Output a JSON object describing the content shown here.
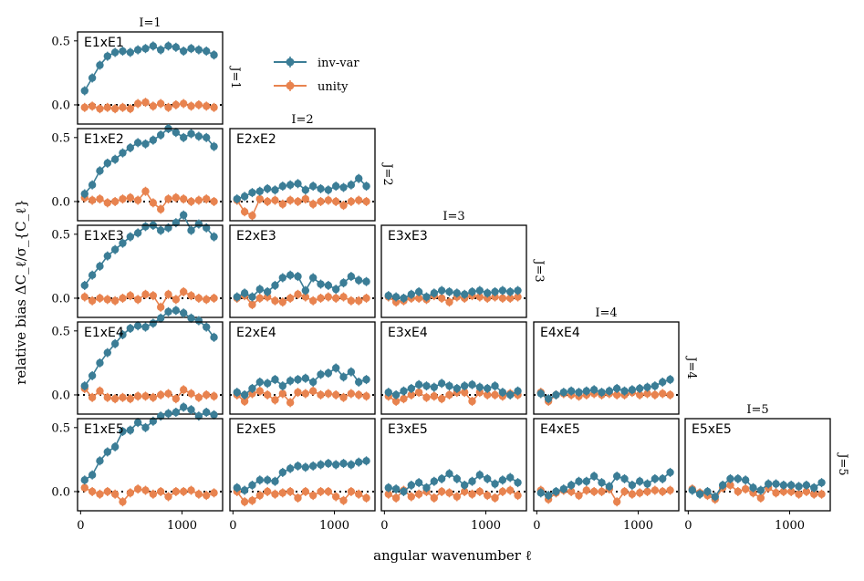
{
  "chart_data": {
    "type": "scatter",
    "xlabel": "angular wavenumber ℓ",
    "ylabel": "relative bias ΔC_ℓ/σ_{C_ℓ}",
    "xlim": [
      -30,
      1400
    ],
    "ylim": [
      -0.15,
      0.57
    ],
    "xticks": [
      {
        "v": 0,
        "label": "0"
      },
      {
        "v": 1000,
        "label": "1000"
      }
    ],
    "yticks": [
      {
        "v": 0.0,
        "label": "0.0"
      },
      {
        "v": 0.5,
        "label": "0.5"
      }
    ],
    "x": [
      40,
      115,
      190,
      265,
      340,
      415,
      490,
      565,
      640,
      715,
      790,
      865,
      940,
      1015,
      1090,
      1165,
      1240,
      1315
    ],
    "legend": {
      "position": "upper-center",
      "entries": [
        {
          "label": "inv-var",
          "color": "#3b7d96"
        },
        {
          "label": "unity",
          "color": "#e8834f"
        }
      ]
    },
    "row_labels": [
      "J=1",
      "J=2",
      "J=3",
      "J=4",
      "J=5"
    ],
    "col_labels": [
      "I=1",
      "I=2",
      "I=3",
      "I=4",
      "I=5"
    ],
    "panels": [
      {
        "name": "E1xE1",
        "row": 0,
        "col": 0,
        "inv_var": [
          0.11,
          0.21,
          0.31,
          0.38,
          0.41,
          0.42,
          0.41,
          0.43,
          0.44,
          0.46,
          0.43,
          0.46,
          0.45,
          0.42,
          0.44,
          0.43,
          0.42,
          0.39
        ],
        "unity": [
          -0.02,
          -0.01,
          -0.03,
          -0.02,
          -0.03,
          -0.02,
          -0.03,
          0.01,
          0.02,
          -0.01,
          0.01,
          -0.02,
          0.0,
          0.01,
          -0.01,
          0.0,
          -0.01,
          -0.02
        ]
      },
      {
        "name": "E1xE2",
        "row": 1,
        "col": 0,
        "inv_var": [
          0.06,
          0.13,
          0.24,
          0.3,
          0.33,
          0.38,
          0.42,
          0.46,
          0.45,
          0.48,
          0.52,
          0.57,
          0.54,
          0.5,
          0.53,
          0.51,
          0.5,
          0.43
        ],
        "unity": [
          0.03,
          0.01,
          0.02,
          -0.01,
          0.0,
          0.02,
          0.03,
          0.01,
          0.08,
          -0.01,
          -0.06,
          0.02,
          0.03,
          0.02,
          0.0,
          0.01,
          0.02,
          0.0
        ]
      },
      {
        "name": "E1xE3",
        "row": 2,
        "col": 0,
        "inv_var": [
          0.1,
          0.18,
          0.25,
          0.33,
          0.38,
          0.43,
          0.48,
          0.51,
          0.56,
          0.57,
          0.53,
          0.55,
          0.59,
          0.65,
          0.53,
          0.58,
          0.55,
          0.48
        ],
        "unity": [
          0.01,
          -0.02,
          0.0,
          -0.01,
          -0.02,
          0.0,
          0.02,
          -0.01,
          0.03,
          0.02,
          -0.07,
          0.03,
          -0.01,
          0.05,
          0.02,
          0.0,
          -0.01,
          0.0
        ]
      },
      {
        "name": "E1xE4",
        "row": 3,
        "col": 0,
        "inv_var": [
          0.07,
          0.15,
          0.25,
          0.33,
          0.4,
          0.47,
          0.52,
          0.54,
          0.53,
          0.56,
          0.6,
          0.65,
          0.66,
          0.64,
          0.6,
          0.58,
          0.53,
          0.45
        ],
        "unity": [
          0.05,
          -0.02,
          0.03,
          -0.02,
          -0.03,
          -0.02,
          -0.03,
          -0.01,
          -0.01,
          -0.02,
          0.0,
          0.01,
          -0.03,
          0.04,
          0.01,
          -0.02,
          0.0,
          -0.01
        ]
      },
      {
        "name": "E1xE5",
        "row": 4,
        "col": 0,
        "inv_var": [
          0.09,
          0.13,
          0.24,
          0.31,
          0.35,
          0.47,
          0.48,
          0.54,
          0.5,
          0.55,
          0.59,
          0.61,
          0.62,
          0.66,
          0.64,
          0.59,
          0.62,
          0.6
        ],
        "unity": [
          0.03,
          0.0,
          -0.02,
          0.0,
          -0.02,
          -0.08,
          -0.01,
          0.02,
          0.01,
          -0.02,
          0.0,
          -0.04,
          0.0,
          0.0,
          0.01,
          -0.02,
          -0.03,
          -0.01
        ]
      },
      {
        "name": "E2xE2",
        "row": 1,
        "col": 1,
        "inv_var": [
          0.02,
          0.04,
          0.07,
          0.08,
          0.1,
          0.09,
          0.12,
          0.13,
          0.14,
          0.09,
          0.12,
          0.1,
          0.09,
          0.12,
          0.11,
          0.13,
          0.18,
          0.12
        ],
        "unity": [
          0.01,
          -0.08,
          -0.11,
          0.02,
          0.0,
          0.01,
          -0.02,
          0.01,
          0.0,
          0.02,
          -0.02,
          0.0,
          0.01,
          0.0,
          -0.03,
          0.0,
          0.01,
          0.0
        ]
      },
      {
        "name": "E2xE3",
        "row": 2,
        "col": 1,
        "inv_var": [
          0.01,
          0.04,
          0.01,
          0.07,
          0.05,
          0.1,
          0.16,
          0.18,
          0.17,
          0.06,
          0.16,
          0.11,
          0.1,
          0.07,
          0.12,
          0.17,
          0.14,
          0.13
        ],
        "unity": [
          0.0,
          0.02,
          -0.05,
          0.0,
          0.01,
          -0.02,
          -0.03,
          0.0,
          0.03,
          0.01,
          -0.02,
          0.0,
          0.01,
          0.0,
          0.01,
          -0.02,
          -0.02,
          0.0
        ]
      },
      {
        "name": "E3xE3",
        "row": 2,
        "col": 2,
        "inv_var": [
          0.02,
          0.01,
          0.0,
          0.03,
          0.05,
          0.01,
          0.04,
          0.06,
          0.05,
          0.04,
          0.03,
          0.05,
          0.06,
          0.04,
          0.05,
          0.06,
          0.05,
          0.06
        ],
        "unity": [
          0.01,
          -0.03,
          -0.02,
          0.0,
          0.0,
          -0.01,
          0.02,
          0.0,
          -0.03,
          0.01,
          0.0,
          0.02,
          0.01,
          0.0,
          0.01,
          0.0,
          0.0,
          0.01
        ]
      },
      {
        "name": "E2xE4",
        "row": 3,
        "col": 1,
        "inv_var": [
          0.02,
          0.0,
          0.05,
          0.1,
          0.09,
          0.12,
          0.07,
          0.11,
          0.12,
          0.13,
          0.1,
          0.16,
          0.17,
          0.21,
          0.14,
          0.18,
          0.1,
          0.12
        ],
        "unity": [
          0.0,
          -0.05,
          0.01,
          0.03,
          0.0,
          -0.04,
          0.01,
          -0.06,
          0.02,
          0.01,
          0.03,
          0.0,
          0.01,
          0.0,
          -0.02,
          0.01,
          0.0,
          -0.01
        ]
      },
      {
        "name": "E3xE4",
        "row": 3,
        "col": 2,
        "inv_var": [
          0.02,
          0.0,
          0.03,
          0.05,
          0.08,
          0.07,
          0.06,
          0.09,
          0.07,
          0.05,
          0.07,
          0.08,
          0.06,
          0.05,
          0.07,
          0.02,
          0.0,
          0.03
        ],
        "unity": [
          -0.01,
          -0.05,
          -0.03,
          0.0,
          0.02,
          -0.02,
          -0.01,
          -0.03,
          0.0,
          0.02,
          0.02,
          -0.05,
          0.02,
          0.0,
          0.0,
          -0.01,
          0.01,
          0.0
        ]
      },
      {
        "name": "E4xE4",
        "row": 3,
        "col": 3,
        "inv_var": [
          0.01,
          -0.03,
          0.0,
          0.02,
          0.03,
          0.02,
          0.03,
          0.04,
          0.02,
          0.03,
          0.05,
          0.03,
          0.04,
          0.05,
          0.06,
          0.07,
          0.1,
          0.12
        ],
        "unity": [
          0.02,
          -0.05,
          0.0,
          0.01,
          0.0,
          -0.01,
          0.0,
          0.01,
          0.0,
          0.01,
          0.0,
          0.0,
          0.02,
          0.0,
          0.01,
          0.0,
          0.01,
          0.0
        ]
      },
      {
        "name": "E2xE5",
        "row": 4,
        "col": 1,
        "inv_var": [
          0.03,
          0.01,
          0.05,
          0.09,
          0.09,
          0.08,
          0.15,
          0.18,
          0.2,
          0.19,
          0.2,
          0.21,
          0.22,
          0.21,
          0.22,
          0.21,
          0.23,
          0.24
        ],
        "unity": [
          0.0,
          -0.08,
          -0.07,
          -0.03,
          0.0,
          -0.02,
          -0.01,
          0.0,
          -0.05,
          0.0,
          -0.03,
          0.0,
          0.0,
          -0.04,
          -0.07,
          0.0,
          -0.02,
          -0.05
        ]
      },
      {
        "name": "E3xE5",
        "row": 4,
        "col": 2,
        "inv_var": [
          0.03,
          0.02,
          0.0,
          0.05,
          0.07,
          0.03,
          0.08,
          0.1,
          0.14,
          0.1,
          0.05,
          0.08,
          0.13,
          0.1,
          0.06,
          0.09,
          0.11,
          0.07
        ],
        "unity": [
          -0.02,
          -0.05,
          0.01,
          -0.04,
          -0.02,
          0.0,
          -0.05,
          0.0,
          -0.01,
          -0.04,
          0.0,
          -0.02,
          0.0,
          -0.03,
          -0.05,
          0.0,
          0.01,
          -0.03
        ]
      },
      {
        "name": "E4xE5",
        "row": 4,
        "col": 3,
        "inv_var": [
          -0.01,
          -0.03,
          0.0,
          0.02,
          0.05,
          0.08,
          0.08,
          0.12,
          0.07,
          0.04,
          0.12,
          0.1,
          0.05,
          0.08,
          0.06,
          0.1,
          0.1,
          0.15
        ],
        "unity": [
          0.01,
          -0.06,
          -0.01,
          0.01,
          0.0,
          -0.03,
          0.01,
          0.0,
          0.0,
          0.02,
          -0.08,
          0.0,
          -0.02,
          -0.01,
          0.0,
          0.01,
          0.0,
          0.01
        ]
      },
      {
        "name": "E5xE5",
        "row": 4,
        "col": 4,
        "inv_var": [
          0.01,
          -0.02,
          0.0,
          -0.04,
          0.05,
          0.1,
          0.1,
          0.09,
          0.03,
          0.01,
          0.06,
          0.06,
          0.05,
          0.05,
          0.04,
          0.05,
          0.03,
          0.07
        ],
        "unity": [
          0.02,
          -0.01,
          -0.03,
          -0.06,
          0.03,
          0.05,
          0.0,
          0.02,
          -0.01,
          -0.05,
          0.03,
          -0.01,
          0.0,
          0.0,
          -0.02,
          0.0,
          -0.02,
          -0.02
        ]
      }
    ]
  }
}
